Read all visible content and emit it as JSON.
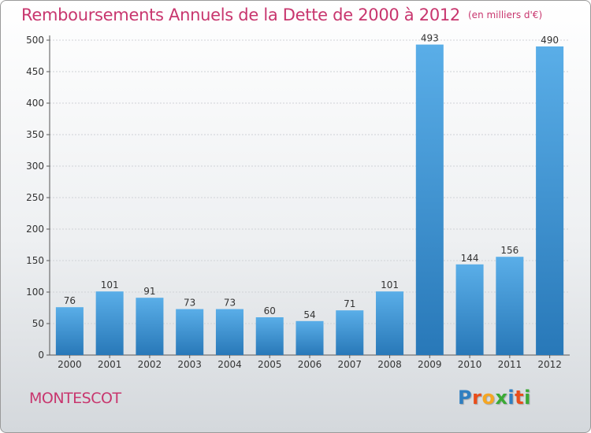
{
  "header": {
    "title": "Remboursements Annuels de la Dette de 2000 à 2012",
    "unit_note": "(en milliers d'€)"
  },
  "footer": {
    "commune": "MONTESCOT",
    "logo_letters": [
      "P",
      "r",
      "o",
      "x",
      "i",
      "t",
      "i"
    ],
    "logo_colors": [
      "#2f7fc1",
      "#e94e1b",
      "#f5a623",
      "#3aaa35",
      "#2f7fc1",
      "#e94e1b",
      "#3aaa35"
    ]
  },
  "colors": {
    "bar_top": "#5aaee8",
    "bar_bottom": "#2878b8",
    "title": "#c8366e",
    "grid": "#cfd2d6"
  },
  "chart_data": {
    "type": "bar",
    "title": "Remboursements Annuels de la Dette de 2000 à 2012",
    "categories": [
      "2000",
      "2001",
      "2002",
      "2003",
      "2004",
      "2005",
      "2006",
      "2007",
      "2008",
      "2009",
      "2010",
      "2011",
      "2012"
    ],
    "values": [
      76,
      101,
      91,
      73,
      73,
      60,
      54,
      71,
      101,
      493,
      144,
      156,
      490
    ],
    "ylim": [
      0,
      500
    ],
    "yticks": [
      0,
      50,
      100,
      150,
      200,
      250,
      300,
      350,
      400,
      450,
      500
    ],
    "grid": true,
    "data_labels": true
  }
}
